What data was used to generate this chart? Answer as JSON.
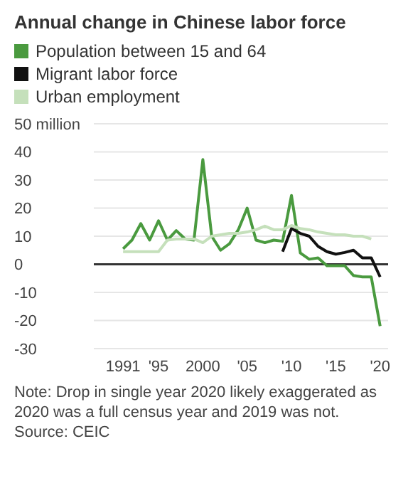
{
  "chart_data": {
    "type": "line",
    "title": "Annual change in Chinese labor force",
    "x": [
      1991,
      1992,
      1993,
      1994,
      1995,
      1996,
      1997,
      1998,
      1999,
      2000,
      2001,
      2002,
      2003,
      2004,
      2005,
      2006,
      2007,
      2008,
      2009,
      2010,
      2011,
      2012,
      2013,
      2014,
      2015,
      2016,
      2017,
      2018,
      2019,
      2020
    ],
    "series": [
      {
        "name": "Population between 15 and 64",
        "color": "#4a9a3f",
        "values": [
          5.5,
          8.6,
          14.5,
          8.6,
          15.5,
          8.6,
          12,
          9,
          8.6,
          37.3,
          10,
          5,
          7.3,
          12.3,
          20,
          8.6,
          7.7,
          8.6,
          8.2,
          24.5,
          4,
          1.8,
          2.3,
          -0.5,
          -0.5,
          -0.5,
          -4,
          -4.5,
          -4.5,
          -22
        ]
      },
      {
        "name": "Migrant labor force",
        "color": "#111111",
        "values": [
          null,
          null,
          null,
          null,
          null,
          null,
          null,
          null,
          null,
          null,
          null,
          null,
          null,
          null,
          null,
          null,
          null,
          null,
          4.5,
          12.7,
          11,
          10,
          6.4,
          4.5,
          3.6,
          4.2,
          5,
          2.3,
          2.3,
          -4.5
        ]
      },
      {
        "name": "Urban employment",
        "color": "#c5e0bb",
        "values": [
          4.5,
          4.5,
          4.5,
          4.5,
          4.5,
          8.6,
          9,
          9,
          9,
          7.7,
          10,
          10.5,
          11,
          11,
          11.5,
          12.3,
          13.6,
          12.3,
          12.3,
          13.8,
          12.7,
          12.3,
          11.5,
          11,
          10.5,
          10.5,
          10,
          10,
          9,
          null
        ]
      }
    ],
    "xlim": [
      1987.7,
      2020.9
    ],
    "xticks": [
      1991,
      {
        "value": 1995,
        "label": "'95"
      },
      2000,
      {
        "value": 2005,
        "label": "'05"
      },
      {
        "value": 2010,
        "label": "'10"
      },
      {
        "value": 2015,
        "label": "'15"
      },
      {
        "value": 2020,
        "label": "'20"
      }
    ],
    "ylim": [
      -30,
      50
    ],
    "yticks": [
      -30,
      -20,
      -10,
      0,
      10,
      20,
      30,
      40,
      {
        "value": 50,
        "label": "50 million"
      }
    ],
    "ref_lines": [
      {
        "axis": "y",
        "value": 0,
        "color": "#333333"
      }
    ],
    "grid": "y",
    "legend": "top",
    "marker": "none",
    "line_style": "solid",
    "annotations": [
      "Note: Drop in single year 2020 likely exaggerated as 2020 was a full census year and 2019 was not.",
      "Source: CEIC"
    ]
  }
}
